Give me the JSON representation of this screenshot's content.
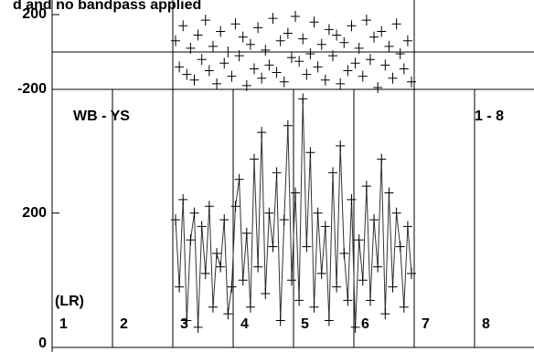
{
  "chart_data": {
    "type": "line",
    "title": "d and no bandpass applied",
    "baseline_label": "WB - YS",
    "range_label": "1 - 8",
    "polarization_label": "(LR)",
    "panel_labels": [
      "1",
      "2",
      "3",
      "4",
      "5",
      "6",
      "7",
      "8"
    ],
    "phase": {
      "ylim": [
        -200,
        200
      ],
      "yticks": [
        -200,
        200
      ],
      "values": [
        60,
        -80,
        140,
        -120,
        20,
        -150,
        90,
        -40,
        170,
        -100,
        30,
        -170,
        110,
        -60,
        0,
        -130,
        150,
        -20,
        80,
        -180,
        40,
        -90,
        130,
        -140,
        10,
        -70,
        180,
        -110,
        60,
        -160,
        100,
        -30,
        190,
        -50,
        70,
        -120,
        -10,
        160,
        -80,
        40,
        -150,
        120,
        -20,
        90,
        -170,
        50,
        -100,
        140,
        -60,
        20,
        -130,
        170,
        -40,
        80,
        -190,
        110,
        -70,
        30,
        -140,
        150,
        -10,
        -90,
        60,
        -160
      ]
    },
    "amplitude": {
      "ylim": [
        0,
        384
      ],
      "yticks": [
        0,
        200
      ],
      "values": [
        190,
        90,
        220,
        40,
        160,
        200,
        30,
        180,
        110,
        210,
        60,
        140,
        120,
        190,
        50,
        90,
        210,
        250,
        100,
        170,
        60,
        280,
        120,
        320,
        80,
        200,
        150,
        260,
        40,
        190,
        330,
        100,
        230,
        70,
        370,
        150,
        290,
        60,
        200,
        110,
        180,
        40,
        260,
        90,
        300,
        140,
        70,
        220,
        30,
        160,
        100,
        240,
        70,
        190,
        120,
        280,
        50,
        230,
        90,
        200,
        150,
        60,
        180,
        110
      ]
    }
  }
}
